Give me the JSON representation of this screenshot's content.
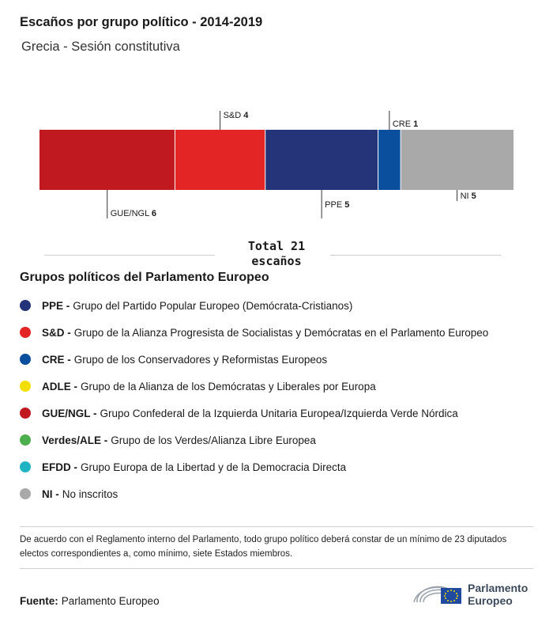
{
  "title": "Escaños por grupo político - 2014-2019",
  "subtitle": "Grecia - Sesión constitutiva",
  "chart_data": {
    "type": "bar",
    "orientation": "stacked-horizontal",
    "series": [
      {
        "label": "GUE/NGL",
        "value": 6,
        "color": "#c0191f",
        "label_position": "bottom"
      },
      {
        "label": "S&D",
        "value": 4,
        "color": "#e42526",
        "label_position": "top"
      },
      {
        "label": "PPE",
        "value": 5,
        "color": "#253479",
        "label_position": "bottom"
      },
      {
        "label": "CRE",
        "value": 1,
        "color": "#0a4f9e",
        "label_position": "top"
      },
      {
        "label": "NI",
        "value": 5,
        "color": "#a9a9a9",
        "label_position": "bottom"
      }
    ],
    "total_label": "Total 21 escaños"
  },
  "legend": {
    "title": "Grupos políticos del Parlamento Europeo",
    "items": [
      {
        "abbr": "PPE -",
        "text": "Grupo del Partido Popular Europeo (Demócrata-Cristianos)",
        "color": "#253479"
      },
      {
        "abbr": "S&D -",
        "text": "Grupo de la Alianza Progresista de Socialistas y Demócratas en el Parlamento Europeo",
        "color": "#e42526"
      },
      {
        "abbr": "CRE -",
        "text": "Grupo de los Conservadores y Reformistas Europeos",
        "color": "#0a4f9e"
      },
      {
        "abbr": "ADLE -",
        "text": "Grupo de la Alianza de los Demócratas y Liberales por Europa",
        "color": "#f2de00"
      },
      {
        "abbr": "GUE/NGL -",
        "text": "Grupo Confederal de la Izquierda Unitaria Europea/Izquierda Verde Nórdica",
        "color": "#c0191f"
      },
      {
        "abbr": "Verdes/ALE -",
        "text": "Grupo de los Verdes/Alianza Libre Europea",
        "color": "#4cae4c"
      },
      {
        "abbr": "EFDD -",
        "text": "Grupo Europa de la Libertad y de la Democracia Directa",
        "color": "#20b3c4"
      },
      {
        "abbr": "NI -",
        "text": "No inscritos",
        "color": "#a9a9a9"
      }
    ]
  },
  "note": "De acuerdo con el Reglamento interno del Parlamento, todo grupo político deberá constar de un mínimo de 23 diputados electos correspondientes a, como mínimo, siete Estados miembros.",
  "source": {
    "label": "Fuente:",
    "value": "Parlamento Europeo"
  },
  "logo": {
    "line1": "Parlamento",
    "line2": "Europeo"
  }
}
